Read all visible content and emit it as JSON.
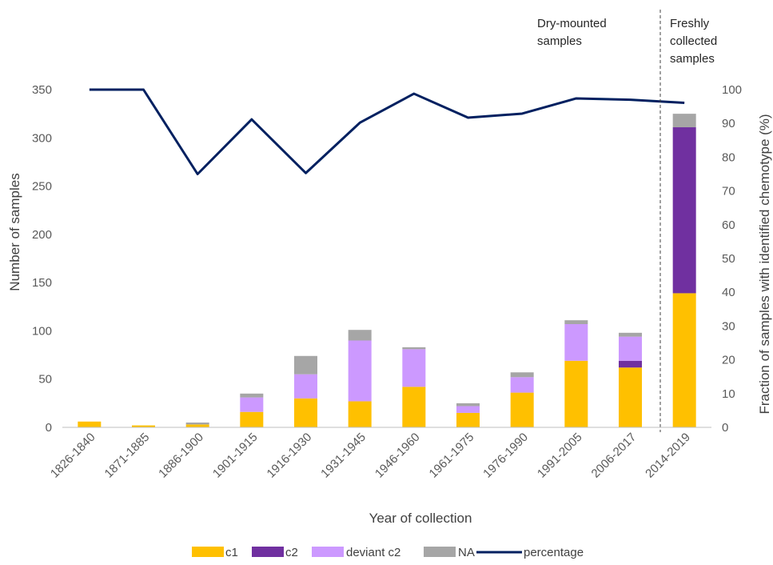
{
  "chart_data": {
    "type": "bar",
    "stacked": true,
    "categories": [
      "1826-1840",
      "1871-1885",
      "1886-1900",
      "1901-1915",
      "1916-1930",
      "1931-1945",
      "1946-1960",
      "1961-1975",
      "1976-1990",
      "1991-2005",
      "2006-2017",
      "2014-2019"
    ],
    "series": [
      {
        "name": "c1",
        "color": "#ffc000",
        "values": [
          6,
          2,
          3,
          16,
          30,
          27,
          42,
          15,
          36,
          69,
          62,
          139
        ]
      },
      {
        "name": "c2",
        "color": "#7030a0",
        "values": [
          0,
          0,
          0,
          0,
          0,
          0,
          0,
          0,
          0,
          0,
          7,
          172
        ]
      },
      {
        "name": "deviant c2",
        "color": "#cc99ff",
        "values": [
          0,
          0,
          0,
          15,
          25,
          63,
          39,
          7,
          16,
          38,
          25,
          0
        ]
      },
      {
        "name": "NA",
        "color": "#a6a6a6",
        "values": [
          0,
          0,
          2,
          4,
          19,
          11,
          2,
          3,
          5,
          4,
          4,
          14
        ]
      }
    ],
    "line_series": {
      "name": "percentage",
      "color": "#002060",
      "values": [
        100,
        100,
        75,
        91.2,
        75.3,
        90.2,
        98.8,
        91.7,
        92.9,
        97.4,
        97,
        96.1
      ]
    },
    "xlabel": "Year of collection",
    "ylabel": "Number of samples",
    "y2label": "Fraction of samples with identified chemotype (%)",
    "ylim": [
      0,
      350
    ],
    "yticks": [
      0,
      50,
      100,
      150,
      200,
      250,
      300,
      350
    ],
    "y2lim": [
      0,
      100
    ],
    "y2ticks": [
      0,
      10,
      20,
      30,
      40,
      50,
      60,
      70,
      80,
      90,
      100
    ],
    "annotations": [
      {
        "lines": [
          "Dry-mounted",
          "samples"
        ]
      },
      {
        "lines": [
          "Freshly",
          "collected",
          "samples"
        ]
      }
    ],
    "legend_position": "bottom",
    "grid": false
  }
}
